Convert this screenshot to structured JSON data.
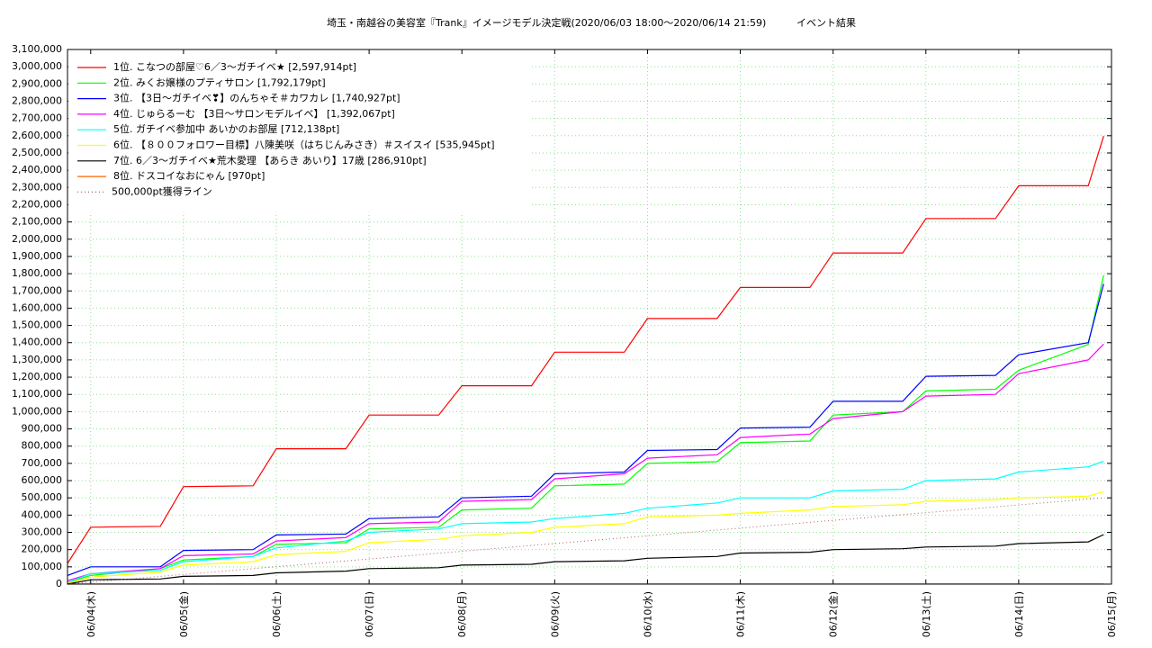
{
  "chart_data": {
    "type": "line",
    "title": "埼玉・南越谷の美容室『Trank』イメージモデル決定戦(2020/06/03 18:00〜2020/06/14 21:59)",
    "subtitle": "イベント結果",
    "x": [
      "06/03 18:00",
      "06/04 00:00",
      "06/04 18:00",
      "06/05 00:00",
      "06/05 18:00",
      "06/06 00:00",
      "06/06 18:00",
      "06/07 00:00",
      "06/07 18:00",
      "06/08 00:00",
      "06/08 18:00",
      "06/09 00:00",
      "06/09 18:00",
      "06/10 00:00",
      "06/10 18:00",
      "06/11 00:00",
      "06/11 18:00",
      "06/12 00:00",
      "06/12 18:00",
      "06/13 00:00",
      "06/13 18:00",
      "06/14 00:00",
      "06/14 18:00",
      "06/14 21:59"
    ],
    "series": [
      {
        "name": "1位. こなつの部屋♡6／3〜ガチイベ★ [2,597,914pt]",
        "color": "#ff0000",
        "values": [
          120000,
          330000,
          335000,
          565000,
          570000,
          785000,
          785000,
          980000,
          980000,
          1150000,
          1150000,
          1345000,
          1345000,
          1540000,
          1540000,
          1720000,
          1720000,
          1920000,
          1920000,
          2120000,
          2120000,
          2310000,
          2310000,
          2597914
        ]
      },
      {
        "name": "2位. みくお嬢様のプティサロン [1,792,179pt]",
        "color": "#00ff00",
        "values": [
          10000,
          50000,
          90000,
          140000,
          160000,
          230000,
          240000,
          320000,
          330000,
          430000,
          440000,
          570000,
          580000,
          700000,
          710000,
          820000,
          830000,
          980000,
          1000000,
          1120000,
          1130000,
          1240000,
          1390000,
          1792179
        ]
      },
      {
        "name": "3位. 【3日〜ガチイベ❣】のんちゃそ＃カワカレ [1,740,927pt]",
        "color": "#0000ff",
        "values": [
          50000,
          100000,
          100000,
          195000,
          200000,
          285000,
          290000,
          380000,
          390000,
          500000,
          510000,
          640000,
          650000,
          775000,
          780000,
          905000,
          910000,
          1060000,
          1060000,
          1205000,
          1210000,
          1330000,
          1400000,
          1740927
        ]
      },
      {
        "name": "4位. じゅらるーむ 【3日〜サロンモデルイベ】 [1,392,067pt]",
        "color": "#ff00ff",
        "values": [
          20000,
          60000,
          90000,
          165000,
          175000,
          250000,
          270000,
          350000,
          360000,
          480000,
          490000,
          610000,
          640000,
          730000,
          750000,
          850000,
          870000,
          960000,
          1000000,
          1090000,
          1100000,
          1220000,
          1300000,
          1392067
        ]
      },
      {
        "name": "5位. ガチイベ参加中 あいかのお部屋 [712,138pt]",
        "color": "#00ffff",
        "values": [
          10000,
          60000,
          80000,
          130000,
          160000,
          210000,
          250000,
          300000,
          320000,
          350000,
          360000,
          380000,
          410000,
          440000,
          470000,
          500000,
          500000,
          540000,
          550000,
          600000,
          610000,
          650000,
          680000,
          712138
        ]
      },
      {
        "name": "6位. 【８００フォロワー目標】八陳美咲（はちじんみさき）＃スイスイ [535,945pt]",
        "color": "#ffff00",
        "values": [
          5000,
          40000,
          70000,
          110000,
          130000,
          170000,
          190000,
          240000,
          260000,
          280000,
          300000,
          330000,
          350000,
          390000,
          400000,
          410000,
          430000,
          450000,
          460000,
          480000,
          490000,
          500000,
          510000,
          535945
        ]
      },
      {
        "name": "7位. 6／3〜ガチイベ★荒木愛理 【あらき あいり】17歳 [286,910pt]",
        "color": "#000000",
        "values": [
          0,
          25000,
          30000,
          45000,
          50000,
          65000,
          75000,
          90000,
          95000,
          110000,
          115000,
          130000,
          135000,
          150000,
          160000,
          180000,
          185000,
          200000,
          205000,
          215000,
          220000,
          235000,
          245000,
          286910
        ]
      },
      {
        "name": "8位. ドスコイなおにゃん [970pt]",
        "color": "#ff6600",
        "values": [
          0,
          970,
          970,
          970,
          970,
          970,
          970,
          970,
          970,
          970,
          970,
          970,
          970,
          970,
          970,
          970,
          970,
          970,
          970,
          970,
          970,
          970,
          970,
          970
        ]
      },
      {
        "name": "500,000pt獲得ライン",
        "color": "#b06060",
        "dash": "dotted",
        "x": [
          "06/03 18:00",
          "06/14 21:59"
        ],
        "values": [
          0,
          500000
        ]
      }
    ],
    "xlim": [
      "06/03 18:00",
      "06/15 00:00"
    ],
    "xticks": [
      {
        "value": "06/04 00:00",
        "label": "06/04(木)"
      },
      {
        "value": "06/05 00:00",
        "label": "06/05(金)"
      },
      {
        "value": "06/06 00:00",
        "label": "06/06(土)"
      },
      {
        "value": "06/07 00:00",
        "label": "06/07(日)"
      },
      {
        "value": "06/08 00:00",
        "label": "06/08(月)"
      },
      {
        "value": "06/09 00:00",
        "label": "06/09(火)"
      },
      {
        "value": "06/10 00:00",
        "label": "06/10(水)"
      },
      {
        "value": "06/11 00:00",
        "label": "06/11(木)"
      },
      {
        "value": "06/12 00:00",
        "label": "06/12(金)"
      },
      {
        "value": "06/13 00:00",
        "label": "06/13(土)"
      },
      {
        "value": "06/14 00:00",
        "label": "06/14(日)"
      },
      {
        "value": "06/15 00:00",
        "label": "06/15(月)"
      }
    ],
    "ylim": [
      0,
      3100000
    ],
    "yticks": [
      0,
      {
        "value": 100000,
        "label": "100,000"
      },
      {
        "value": 200000,
        "label": "200,000"
      },
      {
        "value": 300000,
        "label": "300,000"
      },
      {
        "value": 400000,
        "label": "400,000"
      },
      {
        "value": 500000,
        "label": "500,000"
      },
      {
        "value": 600000,
        "label": "600,000"
      },
      {
        "value": 700000,
        "label": "700,000"
      },
      {
        "value": 800000,
        "label": "800,000"
      },
      {
        "value": 900000,
        "label": "900,000"
      },
      {
        "value": 1000000,
        "label": "1,000,000"
      },
      {
        "value": 1100000,
        "label": "1,100,000"
      },
      {
        "value": 1200000,
        "label": "1,200,000"
      },
      {
        "value": 1300000,
        "label": "1,300,000"
      },
      {
        "value": 1400000,
        "label": "1,400,000"
      },
      {
        "value": 1500000,
        "label": "1,500,000"
      },
      {
        "value": 1600000,
        "label": "1,600,000"
      },
      {
        "value": 1700000,
        "label": "1,700,000"
      },
      {
        "value": 1800000,
        "label": "1,800,000"
      },
      {
        "value": 1900000,
        "label": "1,900,000"
      },
      {
        "value": 2000000,
        "label": "2,000,000"
      },
      {
        "value": 2100000,
        "label": "2,100,000"
      },
      {
        "value": 2200000,
        "label": "2,200,000"
      },
      {
        "value": 2300000,
        "label": "2,300,000"
      },
      {
        "value": 2400000,
        "label": "2,400,000"
      },
      {
        "value": 2500000,
        "label": "2,500,000"
      },
      {
        "value": 2600000,
        "label": "2,600,000"
      },
      {
        "value": 2700000,
        "label": "2,700,000"
      },
      {
        "value": 2800000,
        "label": "2,800,000"
      },
      {
        "value": 2900000,
        "label": "2,900,000"
      },
      {
        "value": 3000000,
        "label": "3,000,000"
      },
      {
        "value": 3100000,
        "label": "3,100,000"
      }
    ],
    "grid": true,
    "legend": "top-left"
  }
}
